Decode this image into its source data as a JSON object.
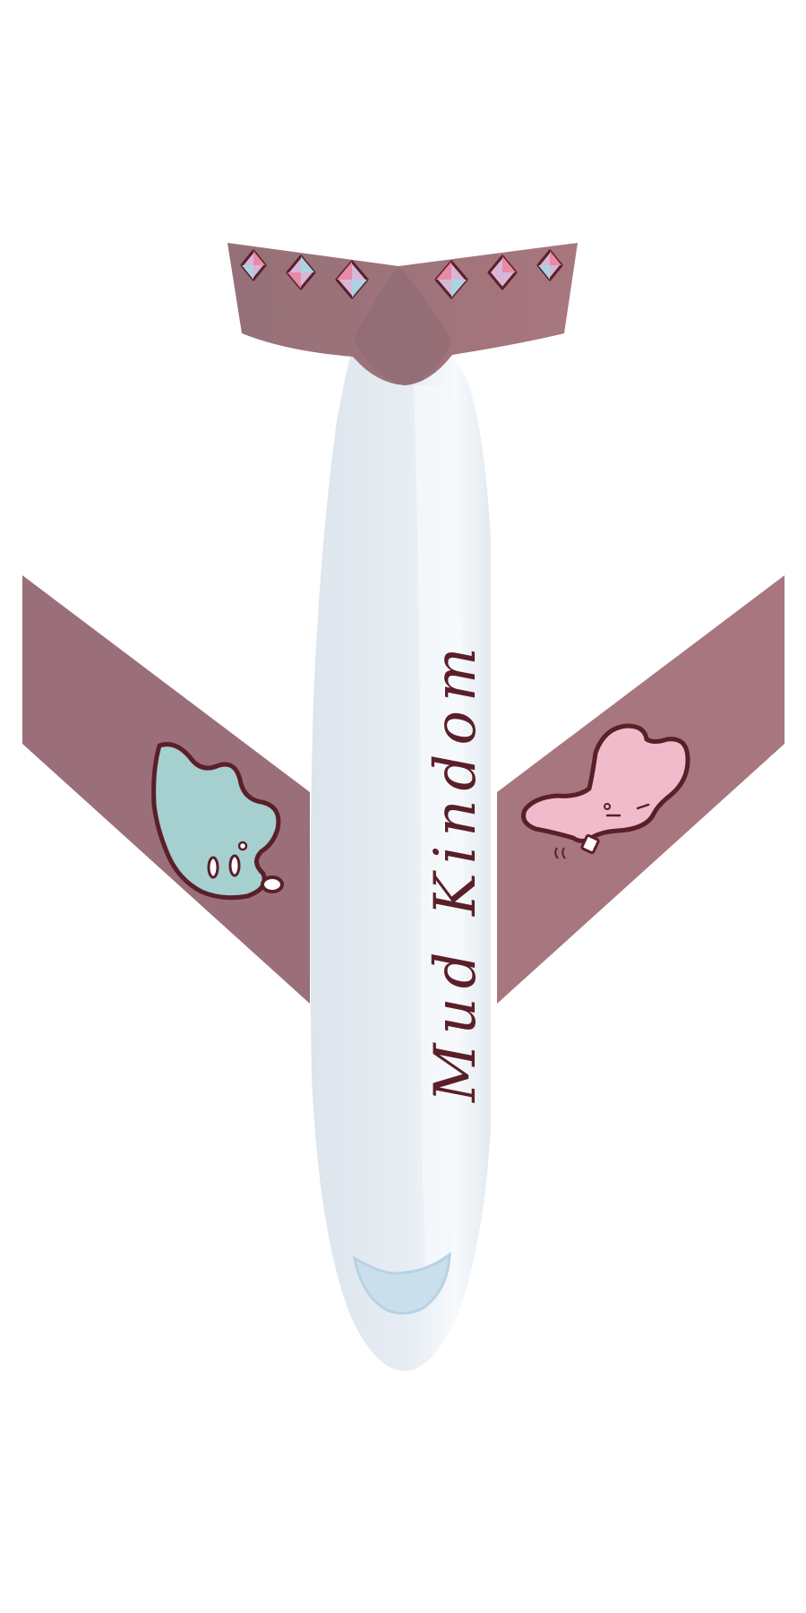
{
  "illustration": {
    "livery_text": "Mud Kindom",
    "colors": {
      "background": "#ffffff",
      "wing": "#9c6f79",
      "wing_light": "#a8767e",
      "fuselage": "#e4ebf1",
      "fuselage_highlight": "#f6f9fb",
      "cockpit_window": "#c9dfec",
      "outline": "#5a1f28",
      "blob_teal": "#a6cfcf",
      "blob_pink": "#f0bccb",
      "gem_pink": "#e88aa6",
      "gem_blue": "#a9d5e2",
      "gem_lilac": "#d7b6d8"
    },
    "parts": [
      "tail-stabilizer",
      "fuselage",
      "left-wing",
      "right-wing",
      "cockpit-window",
      "teal-mud-blob",
      "pink-mud-blob",
      "tail-gems"
    ]
  }
}
